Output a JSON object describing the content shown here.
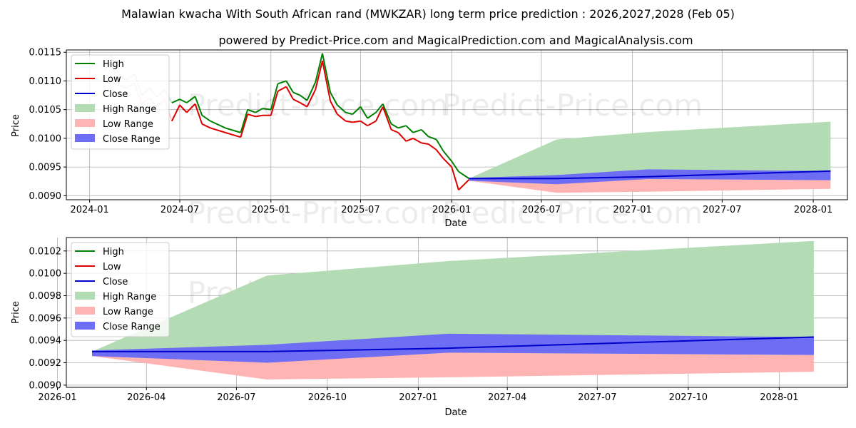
{
  "title": "Malawian kwacha With South African rand (MWKZAR) long term price prediction : 2026,2027,2028 (Feb 05)",
  "subtitle": "powered by Predict-Price.com and MagicalPrediction.com and MagicalAnalysis.com",
  "watermark": "Predict-Price.com",
  "colors": {
    "high": "#008000",
    "low": "#dd0000",
    "close": "#0000cc",
    "high_range": "#b4dcb4",
    "low_range": "#ffb4b4",
    "close_range": "#6e6ef5",
    "grid": "#b0b0b0"
  },
  "legend": {
    "items": [
      {
        "label": "High",
        "kind": "line",
        "color_key": "high"
      },
      {
        "label": "Low",
        "kind": "line",
        "color_key": "low"
      },
      {
        "label": "Close",
        "kind": "line",
        "color_key": "close"
      },
      {
        "label": "High Range",
        "kind": "patch",
        "color_key": "high_range"
      },
      {
        "label": "Low Range",
        "kind": "patch",
        "color_key": "low_range"
      },
      {
        "label": "Close Range",
        "kind": "patch",
        "color_key": "close_range"
      }
    ]
  },
  "chart_data": [
    {
      "type": "line",
      "title": "",
      "xlabel": "Date",
      "ylabel": "Price",
      "xlim": [
        "2023-11-15",
        "2028-03-10"
      ],
      "ylim": [
        0.00893,
        0.01154
      ],
      "grid": true,
      "legend_position": "top-left",
      "xticks": [
        {
          "date": "2024-01-01",
          "label": "2024-01"
        },
        {
          "date": "2024-07-01",
          "label": "2024-07"
        },
        {
          "date": "2025-01-01",
          "label": "2025-01"
        },
        {
          "date": "2025-07-01",
          "label": "2025-07"
        },
        {
          "date": "2026-01-01",
          "label": "2026-01"
        },
        {
          "date": "2026-07-01",
          "label": "2026-07"
        },
        {
          "date": "2027-01-01",
          "label": "2027-01"
        },
        {
          "date": "2027-07-01",
          "label": "2027-07"
        },
        {
          "date": "2028-01-01",
          "label": "2028-01"
        }
      ],
      "yticks": [
        0.009,
        0.0095,
        0.01,
        0.0105,
        0.011,
        0.0115
      ],
      "ytick_labels": [
        "0.0090",
        "0.0095",
        "0.0100",
        "0.0105",
        "0.0110",
        "0.0115"
      ],
      "history": {
        "dates": [
          "2024-02-01",
          "2024-02-15",
          "2024-03-01",
          "2024-03-15",
          "2024-04-01",
          "2024-04-15",
          "2024-05-01",
          "2024-05-15",
          "2024-06-01",
          "2024-06-15",
          "2024-07-01",
          "2024-07-15",
          "2024-08-01",
          "2024-08-15",
          "2024-09-01",
          "2024-10-01",
          "2024-11-01",
          "2024-11-15",
          "2024-12-01",
          "2024-12-15",
          "2025-01-01",
          "2025-01-15",
          "2025-02-01",
          "2025-02-15",
          "2025-03-01",
          "2025-03-15",
          "2025-04-01",
          "2025-04-15",
          "2025-05-01",
          "2025-05-15",
          "2025-06-01",
          "2025-06-15",
          "2025-07-01",
          "2025-07-15",
          "2025-08-01",
          "2025-08-15",
          "2025-09-01",
          "2025-09-15",
          "2025-10-01",
          "2025-10-15",
          "2025-11-01",
          "2025-11-15",
          "2025-12-01",
          "2025-12-15",
          "2026-01-01",
          "2026-01-15",
          "2026-02-05"
        ],
        "high": [
          0.01135,
          0.01143,
          0.01108,
          0.01102,
          0.01112,
          0.01075,
          0.01088,
          0.01072,
          0.01085,
          0.01062,
          0.01068,
          0.01062,
          0.01073,
          0.0104,
          0.0103,
          0.01018,
          0.0101,
          0.0105,
          0.01045,
          0.01052,
          0.0105,
          0.01095,
          0.011,
          0.0108,
          0.01075,
          0.01066,
          0.01098,
          0.01148,
          0.0108,
          0.01058,
          0.01045,
          0.01042,
          0.01055,
          0.01035,
          0.01045,
          0.0106,
          0.01025,
          0.01018,
          0.01022,
          0.0101,
          0.01015,
          0.01003,
          0.00998,
          0.00978,
          0.0096,
          0.00942,
          0.0093
        ],
        "low": [
          0.0112,
          0.01128,
          0.01092,
          0.01088,
          0.01096,
          0.0106,
          0.0107,
          0.01055,
          0.01068,
          0.0103,
          0.01058,
          0.01045,
          0.0106,
          0.01025,
          0.01018,
          0.0101,
          0.01002,
          0.01042,
          0.01038,
          0.0104,
          0.0104,
          0.01082,
          0.0109,
          0.01068,
          0.01062,
          0.01055,
          0.01085,
          0.01135,
          0.01065,
          0.01042,
          0.0103,
          0.01028,
          0.0103,
          0.01022,
          0.0103,
          0.01055,
          0.01015,
          0.0101,
          0.00995,
          0.01,
          0.00992,
          0.0099,
          0.0098,
          0.00965,
          0.0095,
          0.0091,
          0.00928
        ],
        "faded_until": "2024-06-20"
      },
      "forecast": {
        "dates": [
          "2026-02-05",
          "2026-08-01",
          "2027-02-01",
          "2028-02-05"
        ],
        "close": [
          0.0093,
          0.0093,
          0.00933,
          0.00943
        ],
        "high_range": {
          "upper": [
            0.0093,
            0.00998,
            0.01011,
            0.01029
          ],
          "lower": [
            0.00926,
            0.0092,
            0.00929,
            0.00927
          ]
        },
        "low_range": {
          "upper": [
            0.00928,
            0.00921,
            0.00929,
            0.00927
          ],
          "lower": [
            0.00926,
            0.00905,
            0.00907,
            0.00912
          ]
        },
        "close_range": {
          "upper": [
            0.00931,
            0.00936,
            0.00946,
            0.00943
          ],
          "lower": [
            0.00926,
            0.0092,
            0.00929,
            0.00927
          ]
        }
      }
    },
    {
      "type": "line",
      "title": "",
      "xlabel": "Date",
      "ylabel": "Price",
      "xlim": [
        "2026-01-10",
        "2028-03-10"
      ],
      "ylim": [
        0.00898,
        0.01032
      ],
      "grid": true,
      "legend_position": "top-left",
      "xticks": [
        {
          "date": "2026-01-01",
          "label": "2026-01"
        },
        {
          "date": "2026-04-01",
          "label": "2026-04"
        },
        {
          "date": "2026-07-01",
          "label": "2026-07"
        },
        {
          "date": "2026-10-01",
          "label": "2026-10"
        },
        {
          "date": "2027-01-01",
          "label": "2027-01"
        },
        {
          "date": "2027-04-01",
          "label": "2027-04"
        },
        {
          "date": "2027-07-01",
          "label": "2027-07"
        },
        {
          "date": "2027-10-01",
          "label": "2027-10"
        },
        {
          "date": "2028-01-01",
          "label": "2028-01"
        }
      ],
      "yticks": [
        0.009,
        0.0092,
        0.0094,
        0.0096,
        0.0098,
        0.01,
        0.0102
      ],
      "ytick_labels": [
        "0.0090",
        "0.0092",
        "0.0094",
        "0.0096",
        "0.0098",
        "0.0100",
        "0.0102"
      ],
      "forecast": {
        "dates": [
          "2026-02-05",
          "2026-08-01",
          "2027-02-01",
          "2028-02-05"
        ],
        "close": [
          0.0093,
          0.0093,
          0.00933,
          0.00943
        ],
        "high_range": {
          "upper": [
            0.0093,
            0.00998,
            0.01011,
            0.01029
          ],
          "lower": [
            0.00926,
            0.0092,
            0.00929,
            0.00927
          ]
        },
        "low_range": {
          "upper": [
            0.00928,
            0.00921,
            0.00929,
            0.00927
          ],
          "lower": [
            0.00926,
            0.00905,
            0.00907,
            0.00912
          ]
        },
        "close_range": {
          "upper": [
            0.00931,
            0.00936,
            0.00946,
            0.00943
          ],
          "lower": [
            0.00926,
            0.0092,
            0.00929,
            0.00927
          ]
        }
      }
    }
  ]
}
